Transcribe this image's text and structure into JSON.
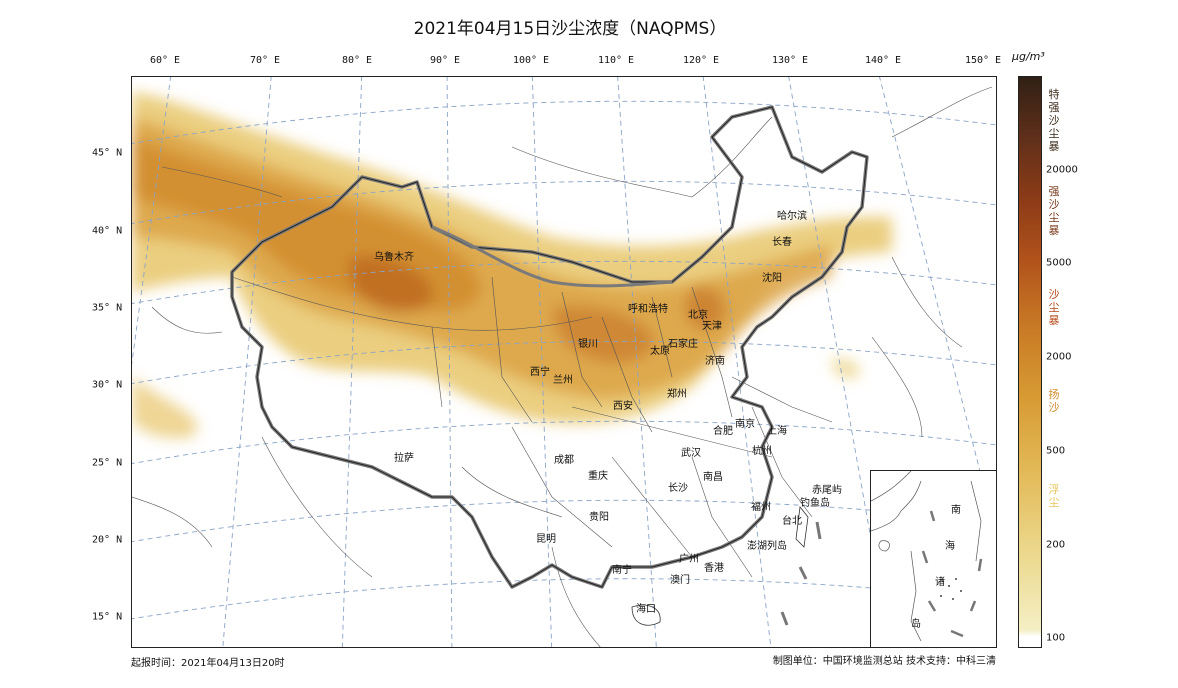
{
  "title": "2021年04月15日沙尘浓度（NAQPMS）",
  "lon_labels": [
    "60° E",
    "70° E",
    "80° E",
    "90° E",
    "100° E",
    "110° E",
    "120° E",
    "130° E",
    "140° E",
    "150° E"
  ],
  "lat_labels": [
    "45° N",
    "40° N",
    "35° N",
    "30° N",
    "25° N",
    "20° N",
    "15° N"
  ],
  "cities": [
    "乌鲁木齐",
    "哈尔滨",
    "长春",
    "沈阳",
    "呼和浩特",
    "北京",
    "天津",
    "银川",
    "石家庄",
    "太原",
    "济南",
    "西宁",
    "兰州",
    "郑州",
    "西安",
    "合肥",
    "南京",
    "上海",
    "杭州",
    "武汉",
    "拉萨",
    "成都",
    "重庆",
    "南昌",
    "长沙",
    "赤尾屿",
    "钓鱼岛",
    "福州",
    "台北",
    "贵阳",
    "昆明",
    "澎湖列岛",
    "南宁",
    "广州",
    "澳门",
    "香港",
    "海口"
  ],
  "colorbar": {
    "unit": "μg/m³",
    "ticks": [
      "20000",
      "5000",
      "2000",
      "500",
      "200",
      "100"
    ],
    "categories": [
      {
        "label": "特强沙尘暴",
        "color": "#3a2a1a"
      },
      {
        "label": "强沙尘暴",
        "color": "#7a3a1c"
      },
      {
        "label": "沙尘暴",
        "color": "#b5491b"
      },
      {
        "label": "扬沙",
        "color": "#d18a2b"
      },
      {
        "label": "浮尘",
        "color": "#e6c45a"
      }
    ]
  },
  "inset_labels": [
    "南",
    "海",
    "诸",
    "岛"
  ],
  "footer": {
    "issue_time": "起报时间：2021年04月13日20时",
    "credits": "制图单位：中国环境监测总站    技术支持：中科三清"
  }
}
